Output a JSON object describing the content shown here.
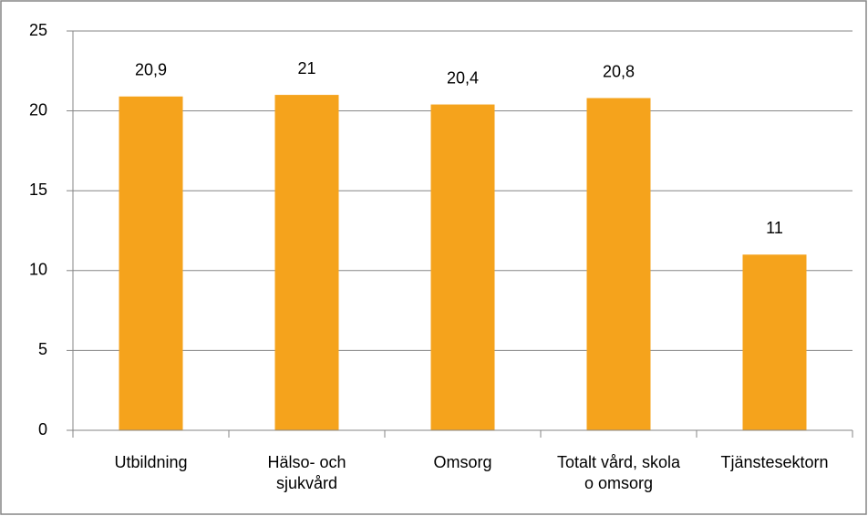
{
  "chart_data": {
    "type": "bar",
    "categories": [
      "Utbildning",
      "Hälso- och sjukvård",
      "Omsorg",
      "Totalt vård, skola o omsorg",
      "Tjänstesektorn"
    ],
    "values": [
      20.9,
      21,
      20.4,
      20.8,
      11
    ],
    "value_labels": [
      "20,9",
      "21",
      "20,4",
      "20,8",
      "11"
    ],
    "color": "#f5a31c",
    "ylim": [
      0,
      25
    ],
    "yticks": [
      0,
      5,
      10,
      15,
      20,
      25
    ],
    "grid": true
  }
}
